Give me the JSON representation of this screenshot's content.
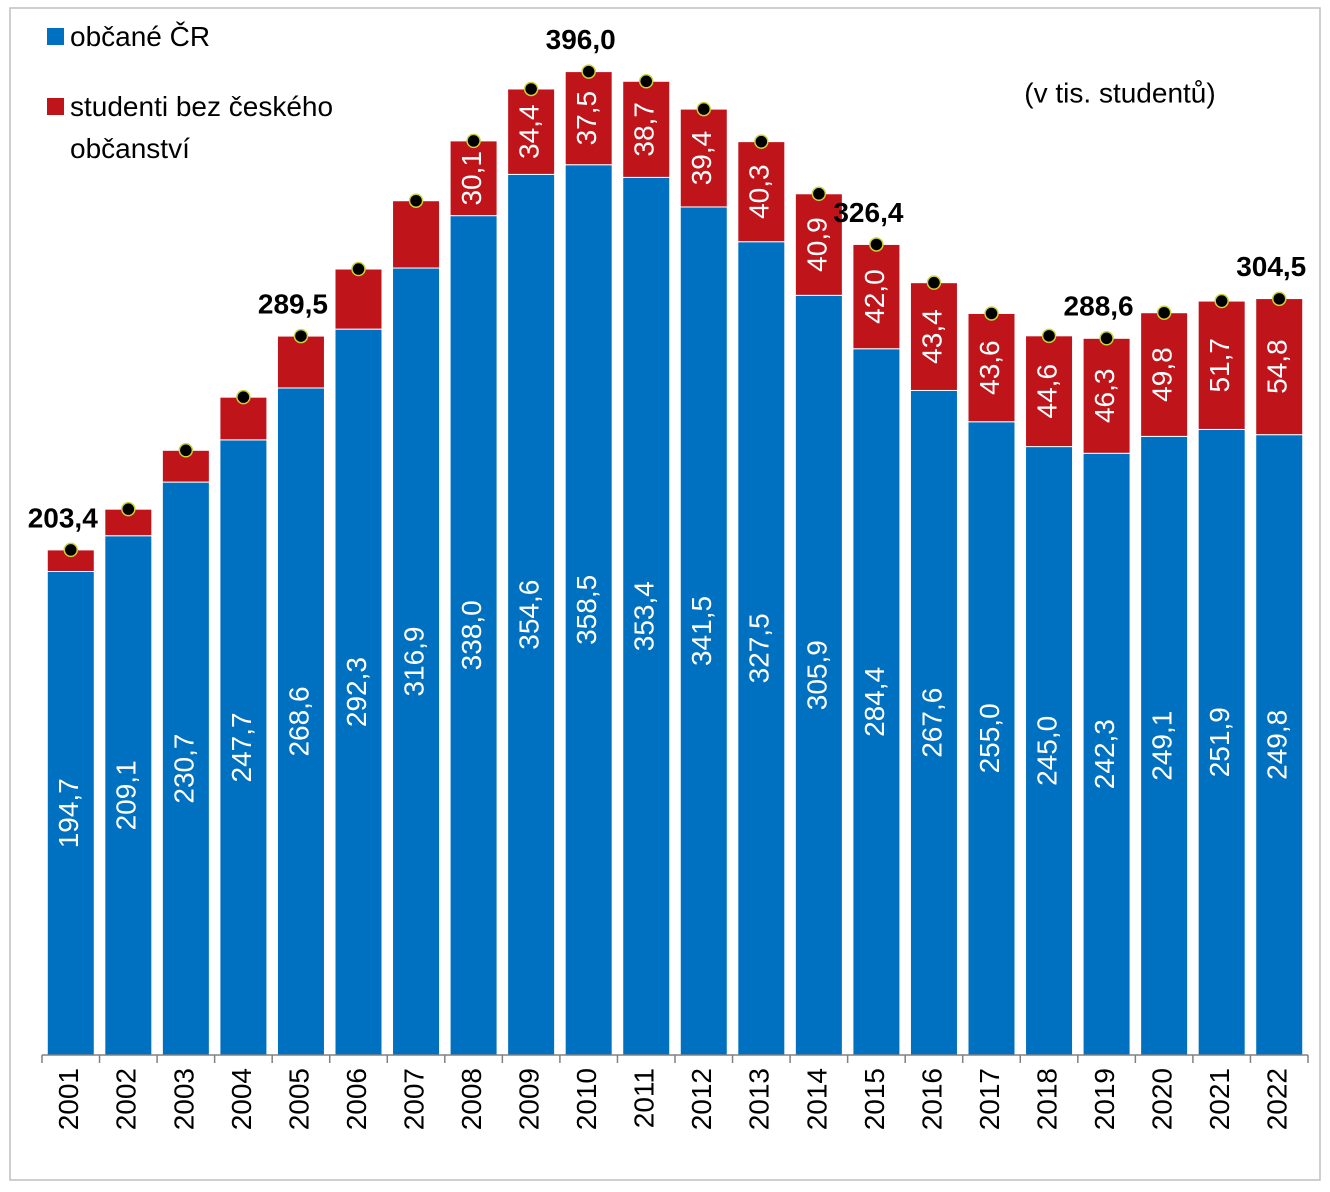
{
  "chart_data": {
    "type": "stacked-bar",
    "categories": [
      "2001",
      "2002",
      "2003",
      "2004",
      "2005",
      "2006",
      "2007",
      "2008",
      "2009",
      "2010",
      "2011",
      "2012",
      "2013",
      "2014",
      "2015",
      "2016",
      "2017",
      "2018",
      "2019",
      "2020",
      "2021",
      "2022"
    ],
    "series": [
      {
        "name": "občané ČR",
        "color": "#0070c0",
        "values": [
          194.7,
          209.1,
          230.7,
          247.7,
          268.6,
          292.3,
          316.9,
          338.0,
          354.6,
          358.5,
          353.4,
          341.5,
          327.5,
          305.9,
          284.4,
          267.6,
          255.0,
          245.0,
          242.3,
          249.1,
          251.9,
          249.8
        ],
        "value_labels": [
          "194,7",
          "209,1",
          "230,7",
          "247,7",
          "268,6",
          "292,3",
          "316,9",
          "338,0",
          "354,6",
          "358,5",
          "353,4",
          "341,5",
          "327,5",
          "305,9",
          "284,4",
          "267,6",
          "255,0",
          "245,0",
          "242,3",
          "249,1",
          "251,9",
          "249,8"
        ]
      },
      {
        "name": "studenti bez českého občanství",
        "color": "#c0141b",
        "values": [
          8.7,
          10.7,
          12.8,
          17.2,
          20.9,
          24.2,
          27.1,
          30.1,
          34.4,
          37.5,
          38.7,
          39.4,
          40.3,
          40.9,
          42.0,
          43.4,
          43.6,
          44.6,
          46.3,
          49.8,
          51.7,
          54.8
        ],
        "value_labels": [
          null,
          null,
          null,
          null,
          null,
          null,
          null,
          "30,1",
          "34,4",
          "37,5",
          "38,7",
          "39,4",
          "40,3",
          "40,9",
          "42,0",
          "43,4",
          "43,6",
          "44,6",
          "46,3",
          "49,8",
          "51,7",
          "54,8"
        ]
      }
    ],
    "totals": {
      "values": [
        203.4,
        219.8,
        243.5,
        264.9,
        289.5,
        316.5,
        344.0,
        368.1,
        389.0,
        396.0,
        392.1,
        380.9,
        367.8,
        346.8,
        326.4,
        311.0,
        298.6,
        289.6,
        288.6,
        298.9,
        303.6,
        304.5
      ],
      "value_labels": [
        "203,4",
        null,
        null,
        null,
        "289,5",
        null,
        null,
        null,
        null,
        "396,0",
        null,
        null,
        null,
        null,
        "326,4",
        null,
        null,
        null,
        "288,6",
        null,
        null,
        "304,5"
      ]
    },
    "annotation": "(v tis. studentů)",
    "ylim": [
      0,
      420
    ]
  }
}
